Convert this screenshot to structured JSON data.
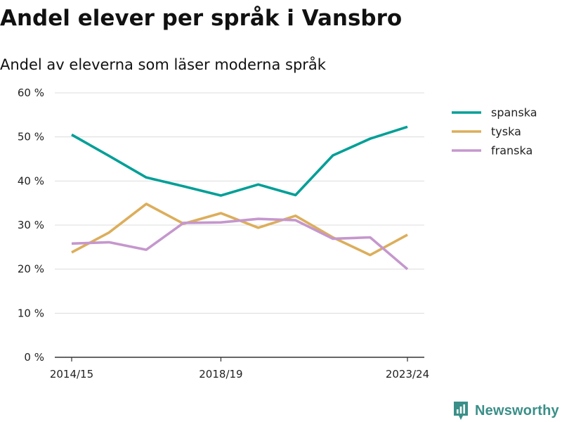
{
  "title": "Andel elever per språk i Vansbro",
  "subtitle": "Andel av eleverna som läser moderna språk",
  "brand": {
    "name": "Newsworthy",
    "icon": "newsworthy-logo-icon",
    "color": "#3a8f88"
  },
  "chart_data": {
    "type": "line",
    "title": "Andel elever per språk i Vansbro",
    "subtitle": "Andel av eleverna som läser moderna språk",
    "xlabel": "",
    "ylabel": "",
    "x": [
      "2014/15",
      "2015/16",
      "2016/17",
      "2017/18",
      "2018/19",
      "2019/20",
      "2020/21",
      "2021/22",
      "2022/23",
      "2023/24"
    ],
    "x_tick_labels": [
      "2014/15",
      "2018/19",
      "2023/24"
    ],
    "ylim": [
      0,
      60
    ],
    "y_ticks": [
      0,
      10,
      20,
      30,
      40,
      50,
      60
    ],
    "y_tick_labels": [
      "0 %",
      "10 %",
      "20 %",
      "30 %",
      "40 %",
      "50 %",
      "60 %"
    ],
    "grid": true,
    "legend_position": "top-right",
    "series": [
      {
        "name": "spanska",
        "color": "#009f97",
        "values": [
          50.5,
          45.7,
          40.8,
          38.8,
          36.7,
          39.2,
          36.8,
          45.8,
          49.6,
          52.3
        ]
      },
      {
        "name": "tyska",
        "color": "#dcae5b",
        "values": [
          23.8,
          28.3,
          34.8,
          30.3,
          32.7,
          29.4,
          32.1,
          27.2,
          23.2,
          27.8
        ]
      },
      {
        "name": "franska",
        "color": "#c597cd",
        "values": [
          25.8,
          26.1,
          24.4,
          30.5,
          30.6,
          31.4,
          31.1,
          26.9,
          27.2,
          20.0
        ]
      }
    ]
  }
}
